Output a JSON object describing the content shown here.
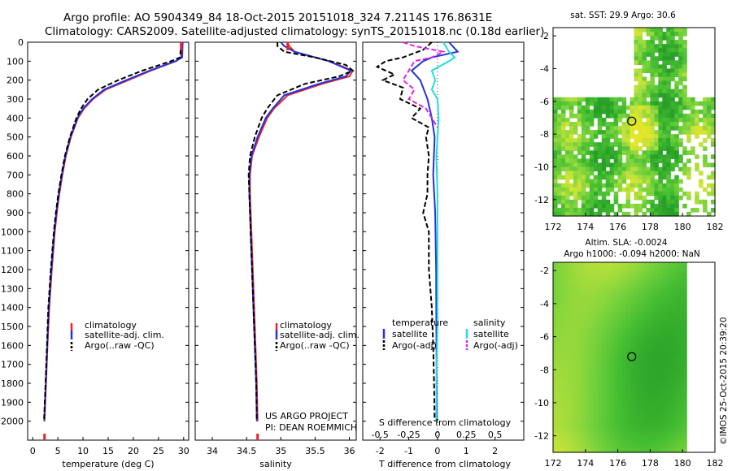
{
  "header": {
    "line1": "Argo profile: AO 5904349_84 18-Oct-2015 20151018_324 7.2114S 176.8631E",
    "line2": "Climatology: CARS2009. Satellite-adjusted climatology: synTS_20151018.nc (0.18d earlier)"
  },
  "colors": {
    "climatology": "#ee2222",
    "satellite": "#2233dd",
    "argo": "#000000",
    "sal_satellite": "#22dddd",
    "sal_argo": "#dd22dd"
  },
  "chart_data": [
    {
      "type": "line",
      "panel": "temperature",
      "xlabel": "temperature (deg C)",
      "ylabel": "",
      "xlim": [
        -1,
        31
      ],
      "ylim": [
        2100,
        0
      ],
      "xticks": [
        "0",
        "5",
        "10",
        "15",
        "20",
        "25",
        "30"
      ],
      "yticks": [
        "0",
        "100",
        "200",
        "300",
        "400",
        "500",
        "600",
        "700",
        "800",
        "900",
        "1000",
        "1100",
        "1200",
        "1300",
        "1400",
        "1500",
        "1600",
        "1700",
        "1800",
        "1900",
        "2000"
      ],
      "legend": [
        "climatology",
        "satellite-adj. clim.",
        "Argo(..raw -QC)"
      ],
      "series": [
        {
          "name": "climatology",
          "depth": [
            0,
            80,
            100,
            150,
            200,
            250,
            300,
            350,
            400,
            500,
            600,
            700,
            800,
            900,
            1000,
            1200,
            1400,
            1600,
            1800,
            2000
          ],
          "values": [
            29.5,
            29.5,
            28.5,
            23.5,
            19.0,
            14.5,
            12.0,
            10.2,
            9.0,
            7.6,
            6.6,
            5.9,
            5.3,
            4.8,
            4.4,
            3.8,
            3.3,
            2.95,
            2.65,
            2.35
          ]
        },
        {
          "name": "satellite-adj. clim.",
          "depth": [
            0,
            80,
            100,
            150,
            200,
            250,
            300,
            350,
            400,
            500,
            600,
            700,
            800,
            900,
            1000,
            1200,
            1400,
            1600,
            1800,
            2000
          ],
          "values": [
            29.8,
            29.7,
            28.4,
            23.2,
            18.6,
            14.2,
            11.8,
            10.0,
            8.9,
            7.5,
            6.5,
            5.8,
            5.2,
            4.7,
            4.3,
            3.7,
            3.2,
            2.9,
            2.6,
            2.3
          ]
        },
        {
          "name": "Argo(..raw -QC)",
          "depth": [
            0,
            80,
            100,
            150,
            200,
            250,
            300,
            350,
            400,
            500,
            600,
            700,
            800,
            900,
            1000,
            1200,
            1400,
            1600,
            1800,
            2000
          ],
          "values": [
            29.5,
            29.3,
            27.5,
            21.8,
            17.0,
            13.0,
            10.9,
            9.6,
            8.7,
            7.4,
            6.4,
            5.7,
            5.1,
            4.6,
            4.2,
            3.6,
            3.1,
            2.85,
            2.55,
            2.25
          ]
        }
      ]
    },
    {
      "type": "line",
      "panel": "salinity",
      "xlabel": "salinity",
      "xlim": [
        33.75,
        36.1
      ],
      "ylim": [
        2100,
        0
      ],
      "xticks": [
        "34",
        "34.5",
        "35",
        "35.5",
        "36"
      ],
      "legend": [
        "climatology",
        "satellite-adj. clim.",
        "Argo(..raw -QC)"
      ],
      "annotation": [
        "US ARGO PROJECT",
        "PI: DEAN ROEMMICH"
      ],
      "series": [
        {
          "name": "climatology",
          "depth": [
            0,
            20,
            50,
            100,
            150,
            180,
            220,
            280,
            350,
            400,
            500,
            600,
            700,
            800,
            900,
            1000,
            1200,
            1400,
            1600,
            1800,
            2000
          ],
          "values": [
            35.1,
            35.12,
            35.2,
            35.7,
            36.05,
            36.0,
            35.6,
            35.1,
            34.9,
            34.8,
            34.68,
            34.58,
            34.55,
            34.55,
            34.56,
            34.57,
            34.59,
            34.61,
            34.63,
            34.65,
            34.66
          ]
        },
        {
          "name": "satellite-adj. clim.",
          "depth": [
            0,
            20,
            50,
            100,
            150,
            180,
            220,
            280,
            350,
            400,
            500,
            600,
            700,
            800,
            900,
            1000,
            1200,
            1400,
            1600,
            1800,
            2000
          ],
          "values": [
            35.0,
            35.05,
            35.2,
            35.7,
            36.02,
            35.95,
            35.55,
            35.05,
            34.88,
            34.78,
            34.66,
            34.57,
            34.54,
            34.54,
            34.55,
            34.56,
            34.58,
            34.6,
            34.62,
            34.64,
            34.65
          ]
        },
        {
          "name": "Argo(..raw -QC)",
          "depth": [
            0,
            20,
            50,
            80,
            120,
            150,
            180,
            220,
            280,
            350,
            400,
            500,
            600,
            700,
            800,
            900,
            1000,
            1200,
            1400,
            1600,
            1800,
            2000
          ],
          "values": [
            34.95,
            34.95,
            35.05,
            35.5,
            35.95,
            36.05,
            35.85,
            35.35,
            34.95,
            34.8,
            34.72,
            34.62,
            34.55,
            34.53,
            34.54,
            34.55,
            34.56,
            34.58,
            34.6,
            34.62,
            34.64,
            34.65
          ]
        }
      ]
    },
    {
      "type": "line",
      "panel": "difference",
      "xlabel_top": "S difference from climatology",
      "xlabel": "T difference from climatology",
      "xlim": [
        -2.6,
        3.0
      ],
      "ylim": [
        2100,
        0
      ],
      "xticks_T": [
        "-2",
        "-1",
        "0",
        "1",
        "2"
      ],
      "xticks_S": [
        "-0.5",
        "-0.25",
        "0",
        "0.25",
        "0.5"
      ],
      "legend_left": [
        "temperature",
        "satellite",
        "Argo(-adj)"
      ],
      "legend_right": [
        "salinity",
        "satellite",
        "Argo(-adj)"
      ],
      "series": [
        {
          "name": "T satellite",
          "depth": [
            0,
            50,
            80,
            100,
            150,
            200,
            300,
            400,
            500,
            700,
            900,
            1200,
            1500,
            1800,
            2000
          ],
          "values": [
            0.4,
            0.7,
            -0.2,
            -0.5,
            -0.9,
            -0.6,
            -0.35,
            -0.2,
            -0.1,
            -0.15,
            -0.08,
            -0.05,
            -0.04,
            -0.03,
            -0.02
          ]
        },
        {
          "name": "T Argo(-adj)",
          "depth": [
            0,
            40,
            80,
            100,
            130,
            170,
            200,
            240,
            300,
            350,
            400,
            450,
            500,
            600,
            700,
            800,
            900,
            1000,
            1200,
            1400,
            1600,
            1800,
            2000
          ],
          "values": [
            -0.2,
            -0.5,
            -1.2,
            -1.8,
            -2.1,
            -1.5,
            -1.9,
            -1.2,
            -1.3,
            -0.6,
            -0.9,
            -0.3,
            -0.4,
            -0.3,
            -0.35,
            -0.35,
            -0.5,
            -0.3,
            -0.3,
            -0.2,
            -0.15,
            -0.12,
            -0.1
          ]
        },
        {
          "name": "S satellite",
          "depth": [
            0,
            50,
            80,
            100,
            150,
            200,
            250,
            300,
            400,
            500,
            600,
            800,
            1000,
            1200,
            1500,
            1800,
            2000
          ],
          "values": [
            0.05,
            0.1,
            0.15,
            0.1,
            -0.05,
            -0.02,
            -0.05,
            0.0,
            0.01,
            0.0,
            -0.01,
            0.0,
            0.0,
            0.0,
            0.0,
            -0.01,
            -0.01
          ]
        },
        {
          "name": "S Argo(-adj)",
          "depth": [
            0,
            20,
            50,
            80,
            100,
            150,
            200,
            250,
            300,
            350,
            400,
            450
          ],
          "values": [
            -0.3,
            -0.2,
            0.05,
            -0.05,
            -0.2,
            -0.25,
            -0.3,
            -0.2,
            -0.25,
            -0.1,
            -0.05,
            0.0
          ]
        }
      ]
    },
    {
      "type": "heatmap",
      "panel": "sst_map",
      "title": "sat. SST: 29.9 Argo: 30.6",
      "xlim": [
        172,
        182
      ],
      "ylim": [
        -13,
        -1.5
      ],
      "xticks": [
        "172",
        "174",
        "176",
        "178",
        "180",
        "182"
      ],
      "yticks": [
        "-2",
        "-4",
        "-6",
        "-8",
        "-10",
        "-12"
      ],
      "argo_position": {
        "lon": 176.86,
        "lat": -7.21
      }
    },
    {
      "type": "heatmap",
      "panel": "sla_map",
      "title_line1": "Altim. SLA: -0.0024",
      "title_line2": "Argo h1000: -0.094 h2000: NaN",
      "xlim": [
        172,
        182
      ],
      "ylim": [
        -13,
        -1.5
      ],
      "xticks": [
        "172",
        "174",
        "176",
        "178",
        "180",
        "182"
      ],
      "yticks": [
        "-2",
        "-4",
        "-6",
        "-8",
        "-10",
        "-12"
      ],
      "argo_position": {
        "lon": 176.86,
        "lat": -7.21
      }
    }
  ],
  "credit": "©IMOS 25-Oct-2015 20:39:20"
}
